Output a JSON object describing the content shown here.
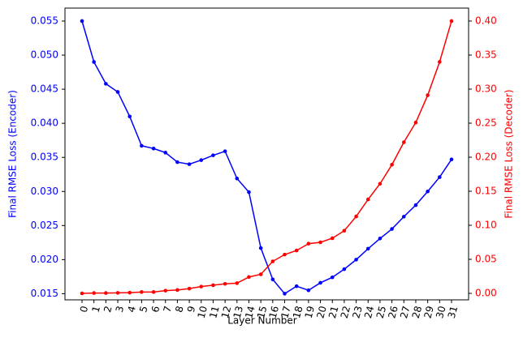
{
  "chart_data": {
    "type": "line",
    "xlabel": "Layer Number",
    "ylabel": "Final RMSE Loss (Encoder)",
    "y2label": "Final RMSE Loss (Decoder)",
    "categories": [
      "0",
      "1",
      "2",
      "3",
      "4",
      "5",
      "6",
      "7",
      "8",
      "9",
      "10",
      "11",
      "12",
      "13",
      "14",
      "15",
      "16",
      "17",
      "18",
      "19",
      "20",
      "21",
      "22",
      "23",
      "24",
      "25",
      "26",
      "27",
      "28",
      "29",
      "30",
      "31"
    ],
    "series": [
      {
        "name": "Encoder",
        "color": "#0000ff",
        "axis": "y",
        "values": [
          0.055,
          0.049,
          0.0458,
          0.0446,
          0.041,
          0.0367,
          0.0363,
          0.0357,
          0.0343,
          0.034,
          0.0346,
          0.0353,
          0.0359,
          0.0319,
          0.0299,
          0.0217,
          0.0171,
          0.015,
          0.0161,
          0.0155,
          0.0166,
          0.0174,
          0.0186,
          0.02,
          0.0216,
          0.0231,
          0.0245,
          0.0263,
          0.028,
          0.03,
          0.0321,
          0.0347
        ]
      },
      {
        "name": "Decoder",
        "color": "#ff0000",
        "axis": "y2",
        "values": [
          0.0,
          0.0005,
          0.0005,
          0.0007,
          0.001,
          0.002,
          0.002,
          0.004,
          0.005,
          0.007,
          0.01,
          0.012,
          0.014,
          0.015,
          0.024,
          0.028,
          0.047,
          0.057,
          0.063,
          0.073,
          0.075,
          0.081,
          0.092,
          0.113,
          0.138,
          0.161,
          0.189,
          0.222,
          0.251,
          0.291,
          0.34,
          0.4
        ]
      }
    ],
    "ylim": [
      0.0141,
      0.0569
    ],
    "yticks": [
      0.015,
      {
        "value": 0.02,
        "label": "0.020"
      },
      0.025,
      {
        "value": 0.03,
        "label": "0.030"
      },
      0.035,
      {
        "value": 0.04,
        "label": "0.040"
      },
      0.045,
      {
        "value": 0.05,
        "label": "0.050"
      },
      0.055
    ],
    "y2lim": [
      -0.0095,
      0.419
    ],
    "y2ticks": [
      {
        "value": 0,
        "label": "0.00"
      },
      0.05,
      {
        "value": 0.1,
        "label": "0.10"
      },
      0.15,
      {
        "value": 0.2,
        "label": "0.20"
      },
      0.25,
      {
        "value": 0.3,
        "label": "0.30"
      },
      0.35,
      {
        "value": 0.4,
        "label": "0.40"
      }
    ]
  }
}
